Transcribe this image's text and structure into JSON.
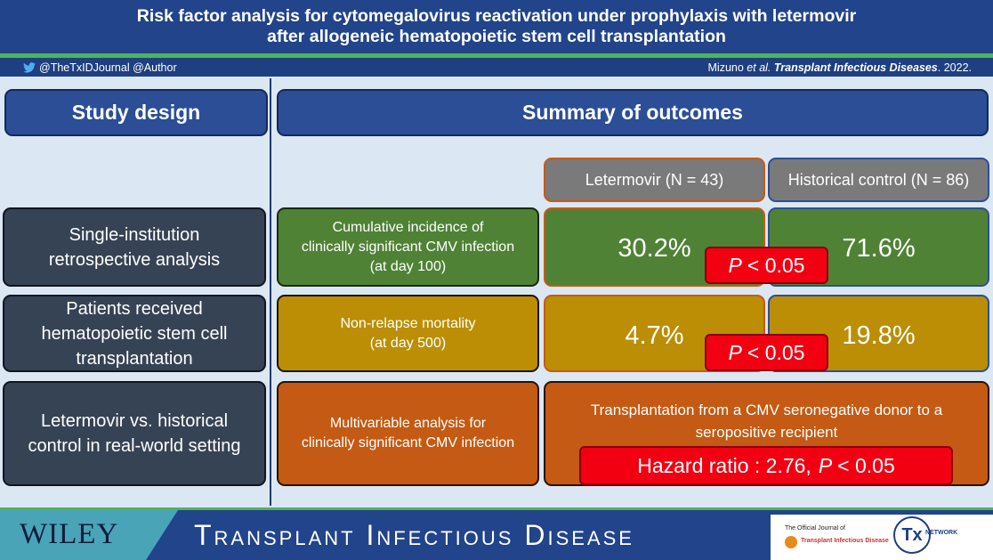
{
  "title": {
    "line1": "Risk factor analysis for cytomegalovirus reactivation under prophylaxis with letermovir",
    "line2": "after allogeneic hematopoietic stem cell transplantation"
  },
  "citation": {
    "handles": "@TheTxIDJournal  @Author",
    "authors": "Mizuno",
    "etal": "et al.",
    "journal": "Transplant Infectious Diseases",
    "year": ". 2022."
  },
  "left": {
    "header": "Study design",
    "items": [
      {
        "line1": "Single-institution",
        "line2": "retrospective analysis"
      },
      {
        "line1": "Patients received",
        "line2": "hematopoietic stem cell",
        "line3": "transplantation"
      },
      {
        "line1": "Letermovir vs. historical",
        "line2": "control in real-world setting"
      }
    ]
  },
  "right": {
    "header": "Summary of outcomes",
    "col_letermovir": "Letermovir (N = 43)",
    "col_control": "Historical control (N = 86)",
    "rows": [
      {
        "label1": "Cumulative incidence of",
        "label2": "clinically significant CMV infection",
        "label3": "(at day 100)",
        "letermovir": "30.2%",
        "control": "71.6%",
        "p_label": "P",
        "p_value": "< 0.05"
      },
      {
        "label1": "Non-relapse mortality",
        "label2": "(at day 500)",
        "letermovir": "4.7%",
        "control": "19.8%",
        "p_label": "P",
        "p_value": "< 0.05"
      }
    ],
    "multivariable": {
      "label1": "Multivariable analysis for",
      "label2": "clinically significant CMV infection",
      "finding1": "Transplantation from a CMV seronegative donor to a",
      "finding2": "seropositive recipient",
      "hr_text": "Hazard ratio : 2.76,",
      "p_label": "P",
      "p_value": "< 0.05"
    }
  },
  "footer": {
    "publisher": "WILEY",
    "journal": "Transplant Infectious Disease",
    "official_label": "The Official Journal of",
    "official_journal": "Transplant Infectious Disease",
    "tx_logo": "Tx",
    "tx_network": "NETWORK"
  },
  "colors": {
    "banner": "#21448a",
    "accent_green": "#4fb35c",
    "green_box": "#4f8235",
    "gold_box": "#bb8e05",
    "orange_box": "#c45a13",
    "p_red": "#f20012"
  }
}
